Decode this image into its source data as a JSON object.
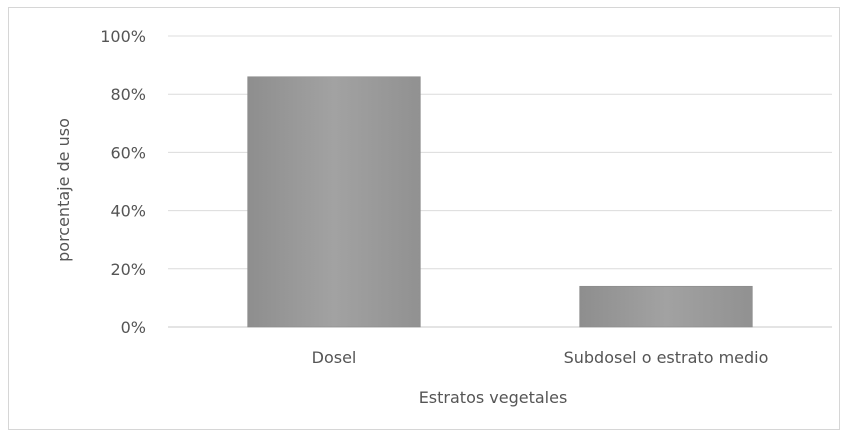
{
  "chart_data": {
    "type": "bar",
    "categories": [
      "Dosel",
      "Subdosel o estrato medio"
    ],
    "values": [
      0.86,
      0.14
    ],
    "xlabel": "Estratos vegetales",
    "ylabel": "porcentaje de uso",
    "ylim": [
      0,
      1
    ],
    "yticks": [
      "0%",
      "20%",
      "40%",
      "60%",
      "80%",
      "100%"
    ],
    "grid": true,
    "legend": "none",
    "colors": {
      "bar": "#9a9a9a",
      "grid": "#dcdcdc",
      "axis": "#c8c8c8"
    }
  }
}
